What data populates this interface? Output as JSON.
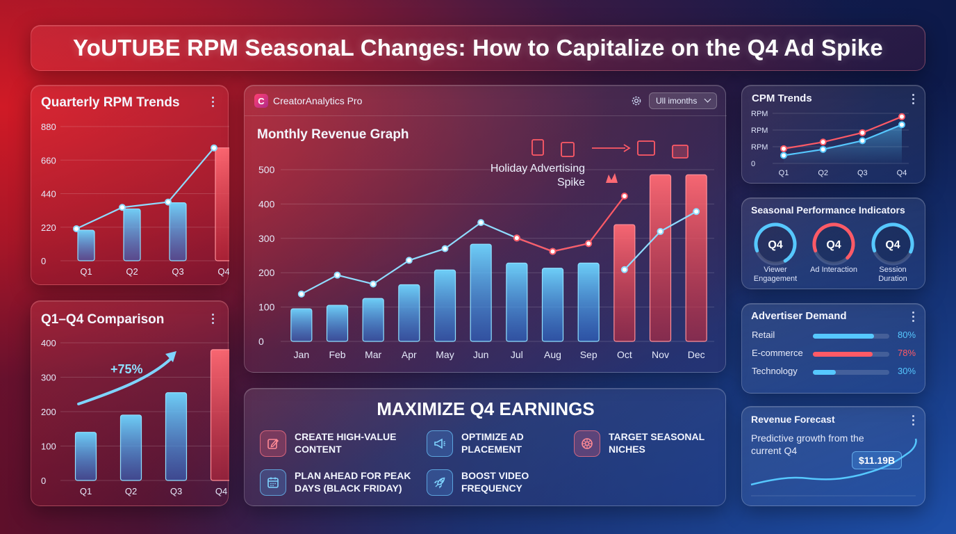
{
  "title": "YoUTUBE RPM SeasonaL Changes: How to Capitalize on the Q4 Ad Spike",
  "colors": {
    "blue": "#56c8ff",
    "red": "#ff5a66",
    "accent_pink": "#ff7a86"
  },
  "quarterly": {
    "title": "Quarterly RPM Trends",
    "chart_data": {
      "type": "bar",
      "categories": [
        "Q1",
        "Q2",
        "Q3",
        "Q4"
      ],
      "values": [
        200,
        340,
        380,
        740
      ],
      "line": [
        210,
        350,
        385,
        740
      ],
      "yticks": [
        "0",
        "220",
        "440",
        "660",
        "880"
      ],
      "ylim": [
        0,
        880
      ]
    }
  },
  "comparison": {
    "title": "Q1–Q4 Comparison",
    "growth": "+75%",
    "chart_data": {
      "type": "bar",
      "categories": [
        "Q1",
        "Q2",
        "Q3",
        "Q4"
      ],
      "values": [
        140,
        190,
        255,
        380
      ],
      "yticks": [
        "0",
        "100",
        "200",
        "300",
        "400"
      ],
      "ylim": [
        0,
        400
      ]
    }
  },
  "app": {
    "name": "CreatorAnalytics Pro",
    "logo_letter": "C",
    "settings_icon": "gear-icon",
    "range_select": "Ull imonths",
    "graph_title": "Monthly Revenue Graph",
    "annotation": "Holiday Advertising Spike",
    "chart_data": {
      "type": "bar",
      "categories": [
        "Jan",
        "Feb",
        "Mar",
        "Apr",
        "May",
        "Jun",
        "Jul",
        "Aug",
        "Sep",
        "Oct",
        "Nov",
        "Dec"
      ],
      "values": [
        95,
        105,
        125,
        165,
        208,
        283,
        228,
        213,
        228,
        340,
        485,
        485
      ],
      "highlight_from": 9,
      "line_blue": [
        138,
        193,
        167,
        236,
        270,
        346,
        301,
        262,
        285,
        209,
        320,
        378
      ],
      "line_red_from": 8,
      "line_red": [
        301,
        262,
        285,
        423
      ],
      "yticks": [
        "0",
        "100",
        "200",
        "300",
        "400",
        "500"
      ],
      "ylim": [
        0,
        500
      ]
    }
  },
  "cpm": {
    "title": "CPM Trends",
    "chart_data": {
      "type": "line",
      "categories": [
        "Q1",
        "Q2",
        "Q3",
        "Q4"
      ],
      "red": [
        22,
        32,
        46,
        70
      ],
      "blue": [
        12,
        21,
        34,
        58
      ],
      "yticks": [
        "0",
        "RPM",
        "RPM",
        "RPM"
      ],
      "ylim": [
        0,
        75
      ]
    }
  },
  "seasonal": {
    "title": "Seasonal Performance Indicators",
    "gauges": [
      {
        "value": "Q4",
        "label": "Viewer Engagement",
        "color": "#56c8ff",
        "level": 0.72
      },
      {
        "value": "Q4",
        "label": "Ad Interaction",
        "color": "#ff5a66",
        "level": 0.68
      },
      {
        "value": "Q4",
        "label": "Session Duration",
        "color": "#56c8ff",
        "level": 0.62
      }
    ]
  },
  "demand": {
    "title": "Advertiser Demand",
    "rows": [
      {
        "label": "Retail",
        "pct": "80%",
        "level": 0.8,
        "color": "#56c8ff"
      },
      {
        "label": "E-commerce",
        "pct": "78%",
        "level": 0.78,
        "color": "#ff5a66"
      },
      {
        "label": "Technology",
        "pct": "30%",
        "level": 0.3,
        "color": "#56c8ff"
      }
    ]
  },
  "forecast": {
    "title": "Revenue Forecast",
    "text": "Predictive growth from the current Q4",
    "value": "$11.19B"
  },
  "maximize": {
    "title": "MAXIMIZE Q4 EARNINGS",
    "tips": [
      {
        "label": "CREATE HIGH-VALUE CONTENT",
        "icon": "edit-icon"
      },
      {
        "label": "OPTIMIZE AD PLACEMENT",
        "icon": "megaphone-icon"
      },
      {
        "label": "TARGET SEASONAL NICHES",
        "icon": "sun-icon"
      },
      {
        "label": "PLAN AHEAD FOR PEAK DAYS (BLACK FRIDAY)",
        "icon": "calendar-icon"
      },
      {
        "label": "BOOST VIDEO FREQUENCY",
        "icon": "rocket-icon"
      }
    ]
  }
}
